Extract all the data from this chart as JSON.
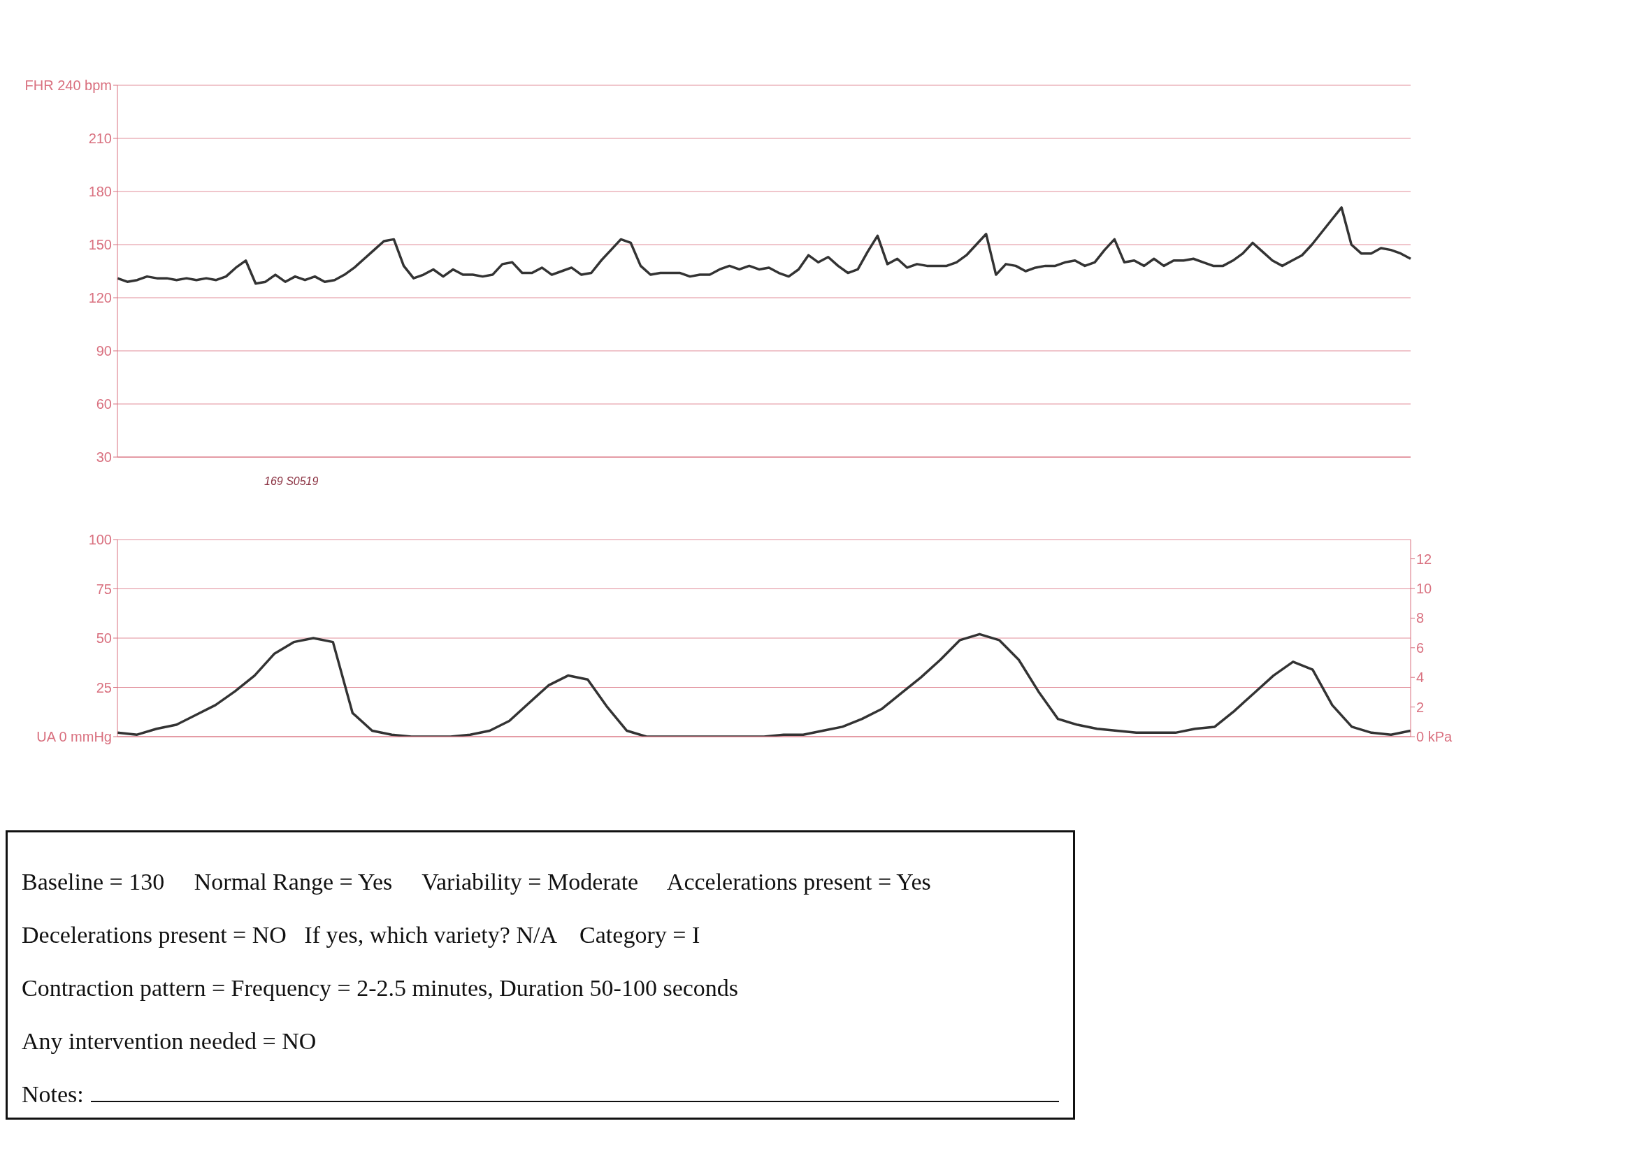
{
  "chart_data": [
    {
      "type": "line",
      "categories": [
        null,
        null,
        null,
        null,
        null,
        null,
        null,
        null,
        null,
        null,
        null,
        null,
        null,
        null,
        null,
        null,
        null,
        null,
        null,
        null,
        null,
        null,
        null,
        null,
        null,
        null,
        null,
        null,
        null,
        null,
        null,
        null,
        null,
        null,
        null,
        null,
        null,
        null,
        null,
        null,
        null,
        null,
        null,
        null,
        null,
        null,
        null,
        null,
        null,
        null,
        null,
        null,
        null,
        null,
        null,
        null,
        null,
        null,
        null,
        null,
        null,
        null,
        null,
        null,
        null,
        null,
        null,
        null,
        null,
        null,
        null,
        null,
        null,
        null,
        null,
        null,
        null,
        null,
        null,
        null,
        null,
        null,
        null,
        null,
        null,
        null,
        null,
        null,
        null,
        null,
        null,
        null,
        null,
        null,
        null,
        null,
        null,
        null,
        null,
        null,
        null,
        null,
        null,
        null,
        null,
        null,
        null,
        null,
        null,
        null,
        null,
        null,
        null,
        null,
        null,
        null,
        null,
        null,
        null,
        null,
        null,
        null,
        null,
        null,
        null,
        null,
        null,
        null,
        null,
        null,
        null,
        null
      ],
      "values": [
        131,
        129,
        130,
        132,
        131,
        131,
        130,
        131,
        130,
        131,
        130,
        132,
        137,
        141,
        128,
        129,
        133,
        129,
        132,
        130,
        132,
        129,
        130,
        133,
        137,
        142,
        147,
        152,
        153,
        138,
        131,
        133,
        136,
        132,
        136,
        133,
        133,
        132,
        133,
        139,
        140,
        134,
        134,
        137,
        133,
        135,
        137,
        133,
        134,
        141,
        147,
        153,
        151,
        138,
        133,
        134,
        134,
        134,
        132,
        133,
        133,
        136,
        138,
        136,
        138,
        136,
        137,
        134,
        132,
        136,
        144,
        140,
        143,
        138,
        134,
        136,
        146,
        155,
        139,
        142,
        137,
        139,
        138,
        138,
        138,
        140,
        144,
        150,
        156,
        133,
        139,
        138,
        135,
        137,
        138,
        138,
        140,
        141,
        138,
        140,
        147,
        153,
        140,
        141,
        138,
        142,
        138,
        141,
        141,
        142,
        140,
        138,
        138,
        141,
        145,
        151,
        146,
        141,
        138,
        141,
        144,
        150,
        157,
        164,
        171,
        150,
        145,
        145,
        148,
        147,
        145,
        142
      ],
      "color": "#333333",
      "ylim": [
        30,
        240
      ],
      "yticks": [
        30,
        60,
        90,
        120,
        150,
        180,
        210,
        {
          "value": 240,
          "label": "FHR 240 bpm"
        }
      ],
      "grid": "y",
      "annotations": [
        "169 S0519"
      ]
    },
    {
      "type": "line",
      "categories": [
        null,
        null,
        null,
        null,
        null,
        null,
        null,
        null,
        null,
        null,
        null,
        null,
        null,
        null,
        null,
        null,
        null,
        null,
        null,
        null,
        null,
        null,
        null,
        null,
        null,
        null,
        null,
        null,
        null,
        null,
        null,
        null,
        null,
        null,
        null,
        null,
        null,
        null,
        null,
        null,
        null,
        null,
        null,
        null,
        null,
        null,
        null,
        null,
        null,
        null,
        null,
        null,
        null,
        null,
        null,
        null,
        null,
        null,
        null,
        null,
        null,
        null,
        null,
        null,
        null,
        null,
        null
      ],
      "values": [
        2,
        1,
        4,
        6,
        11,
        16,
        23,
        31,
        42,
        48,
        50,
        48,
        12,
        3,
        1,
        0,
        0,
        0,
        1,
        3,
        8,
        17,
        26,
        31,
        29,
        15,
        3,
        0,
        0,
        0,
        0,
        0,
        0,
        0,
        1,
        1,
        3,
        5,
        9,
        14,
        22,
        30,
        39,
        49,
        52,
        49,
        39,
        23,
        9,
        6,
        4,
        3,
        2,
        2,
        2,
        4,
        5,
        13,
        22,
        31,
        38,
        34,
        16,
        5,
        2,
        1,
        3
      ],
      "color": "#333333",
      "ylim": [
        0,
        100
      ],
      "yticks": [
        {
          "value": 0,
          "label": "UA 0 mmHg"
        },
        25,
        50,
        75,
        100
      ],
      "y2lim": [
        0,
        13.3
      ],
      "y2ticks": [
        {
          "value": 0,
          "label": "0 kPa"
        },
        2,
        4,
        6,
        8,
        10,
        12
      ],
      "grid": "y"
    },
    {
      "type": "other",
      "annotations": [
        "Baseline = 130     Normal Range = Yes     Variability = Moderate     Accelerations present = Yes",
        "Decelerations present = NO   If yes, which variety? N/A    Category = I",
        "Contraction pattern = Frequency = 2-2.5 minutes, Duration 50-100 seconds",
        "Any intervention needed = NO",
        "Notes:"
      ]
    }
  ]
}
